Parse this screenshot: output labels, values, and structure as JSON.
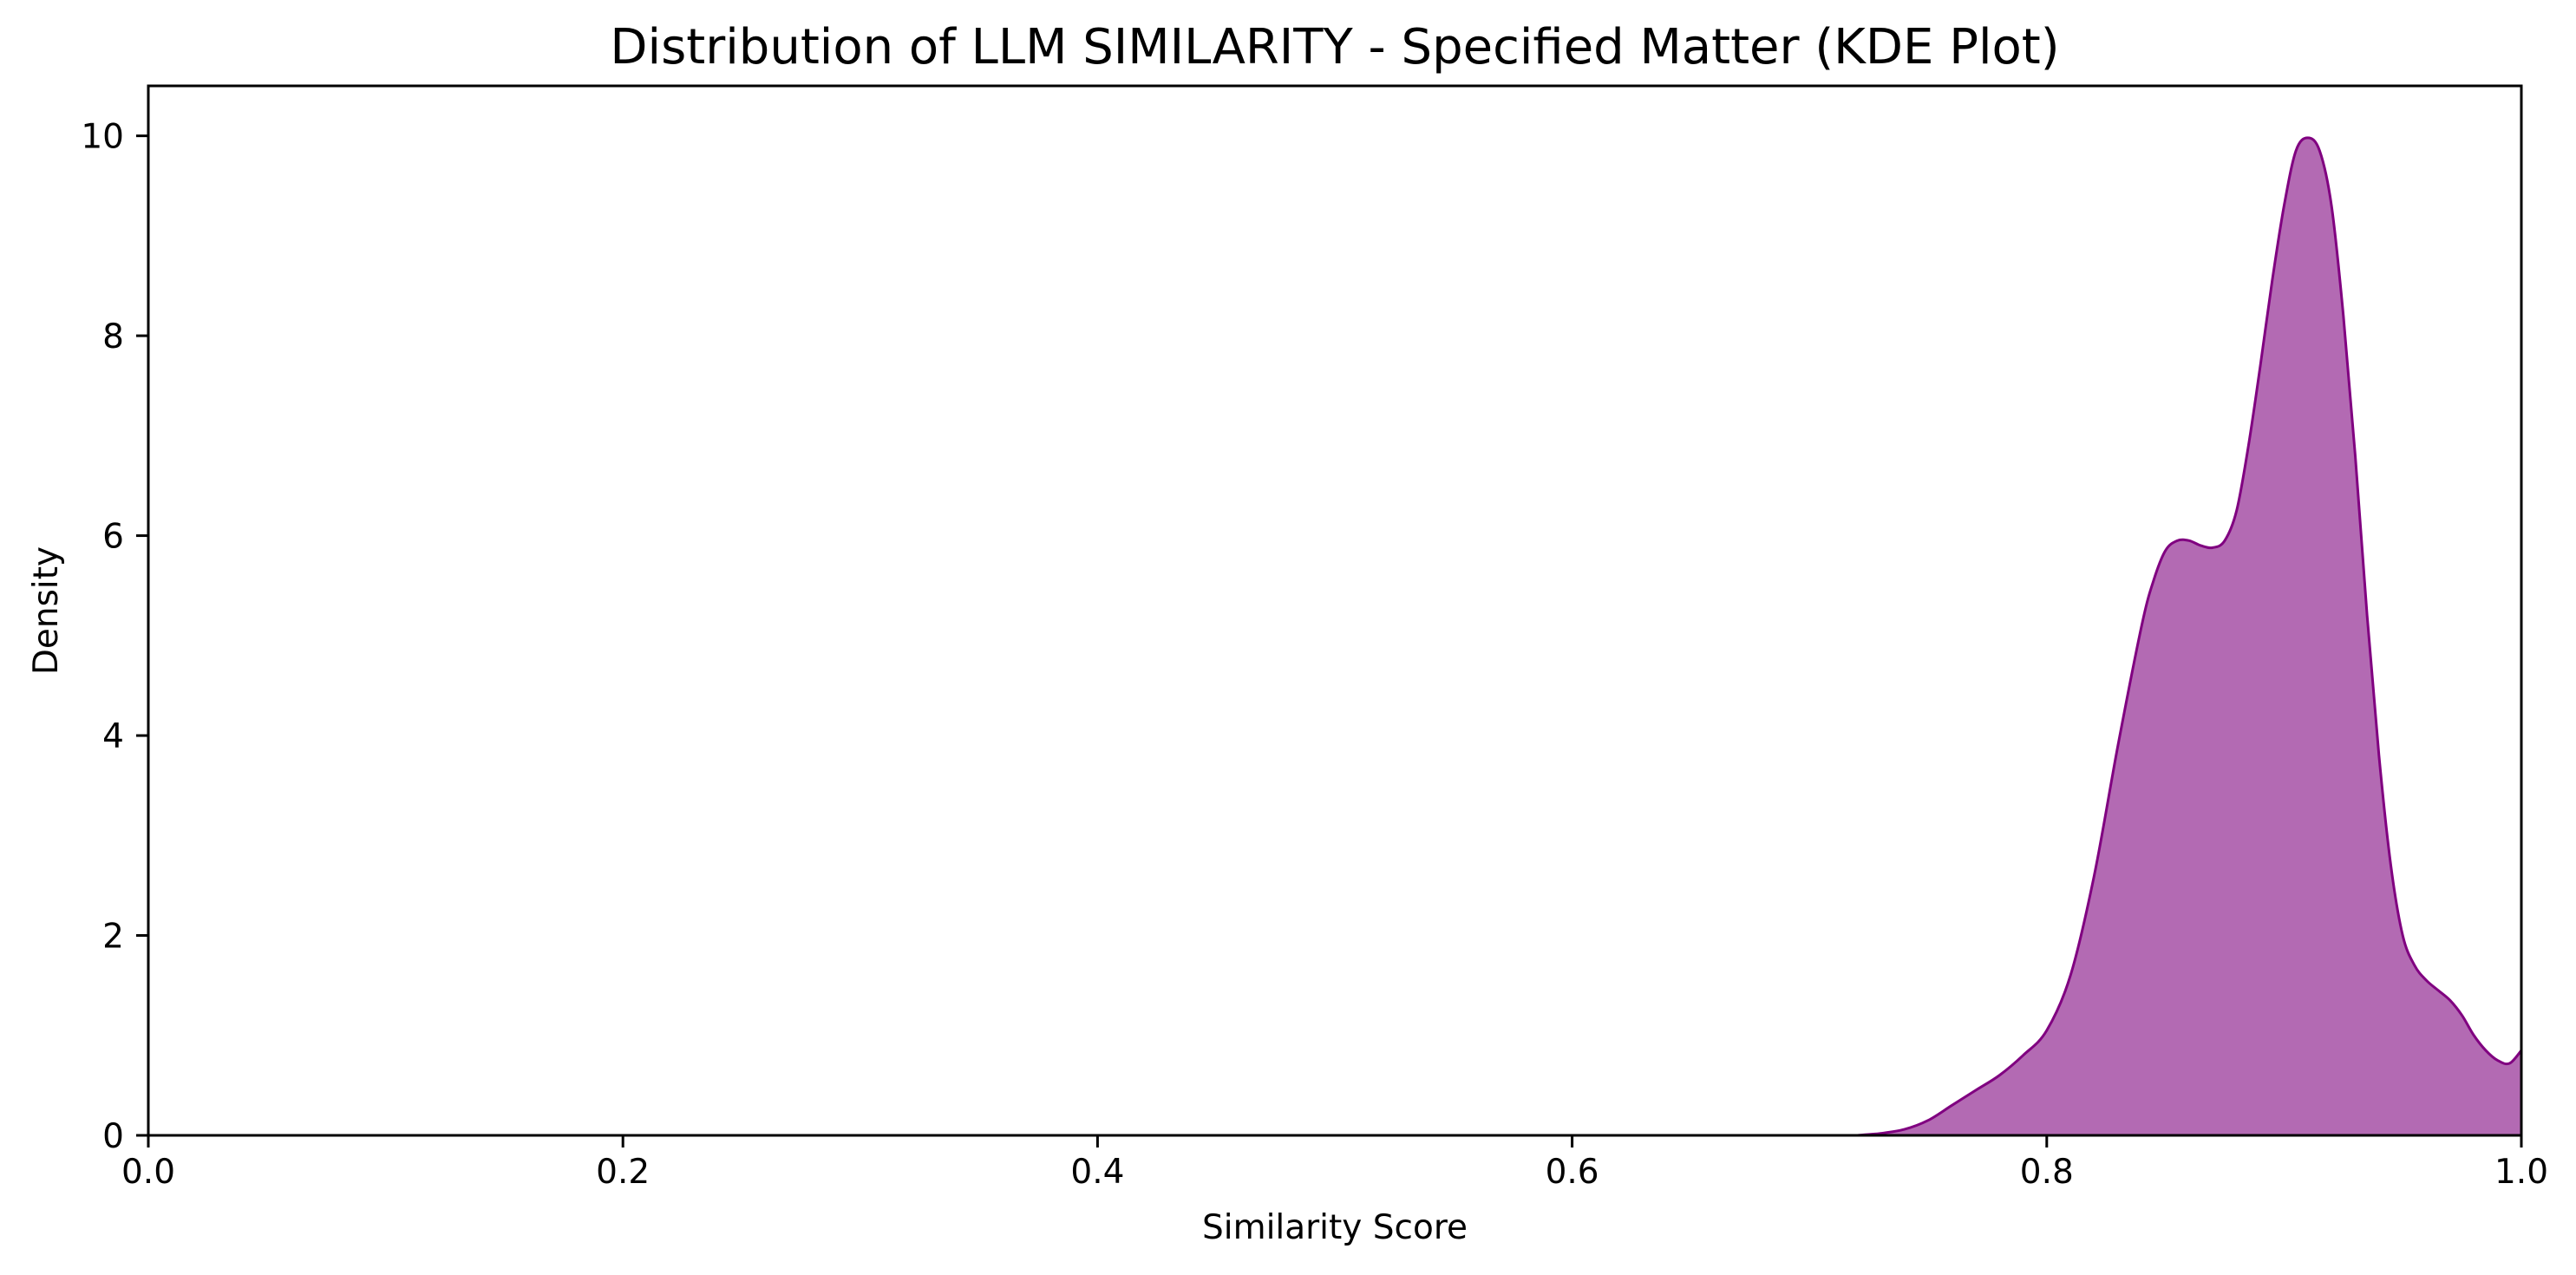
{
  "chart_data": {
    "type": "area",
    "title": "Distribution of LLM SIMILARITY - Specified Matter (KDE Plot)",
    "xlabel": "Similarity Score",
    "ylabel": "Density",
    "xlim": [
      0.0,
      1.0
    ],
    "ylim": [
      0,
      10.5
    ],
    "xticks": [
      0.0,
      0.2,
      0.4,
      0.6,
      0.8,
      1.0
    ],
    "xtick_labels": [
      "0.0",
      "0.2",
      "0.4",
      "0.6",
      "0.8",
      "1.0"
    ],
    "yticks": [
      0,
      2,
      4,
      6,
      8,
      10
    ],
    "ytick_labels": [
      "0",
      "2",
      "4",
      "6",
      "8",
      "10"
    ],
    "grid": false,
    "series": [
      {
        "fill_color": "#b36ab3",
        "line_color": "#800080",
        "x": [
          0.72,
          0.73,
          0.74,
          0.75,
          0.76,
          0.77,
          0.78,
          0.79,
          0.8,
          0.81,
          0.82,
          0.83,
          0.84,
          0.845,
          0.85,
          0.855,
          0.86,
          0.865,
          0.87,
          0.875,
          0.88,
          0.885,
          0.89,
          0.895,
          0.9,
          0.905,
          0.91,
          0.915,
          0.92,
          0.925,
          0.93,
          0.935,
          0.94,
          0.945,
          0.95,
          0.955,
          0.96,
          0.965,
          0.97,
          0.975,
          0.98,
          0.985,
          0.99,
          0.995,
          1.0
        ],
        "y": [
          0.0,
          0.02,
          0.06,
          0.15,
          0.3,
          0.45,
          0.6,
          0.8,
          1.05,
          1.6,
          2.6,
          3.9,
          5.1,
          5.55,
          5.85,
          5.95,
          5.95,
          5.9,
          5.88,
          5.95,
          6.25,
          6.9,
          7.7,
          8.55,
          9.3,
          9.85,
          9.98,
          9.85,
          9.3,
          8.2,
          6.8,
          5.2,
          3.8,
          2.7,
          2.0,
          1.7,
          1.55,
          1.45,
          1.35,
          1.2,
          1.0,
          0.85,
          0.75,
          0.72,
          0.85
        ]
      }
    ]
  }
}
